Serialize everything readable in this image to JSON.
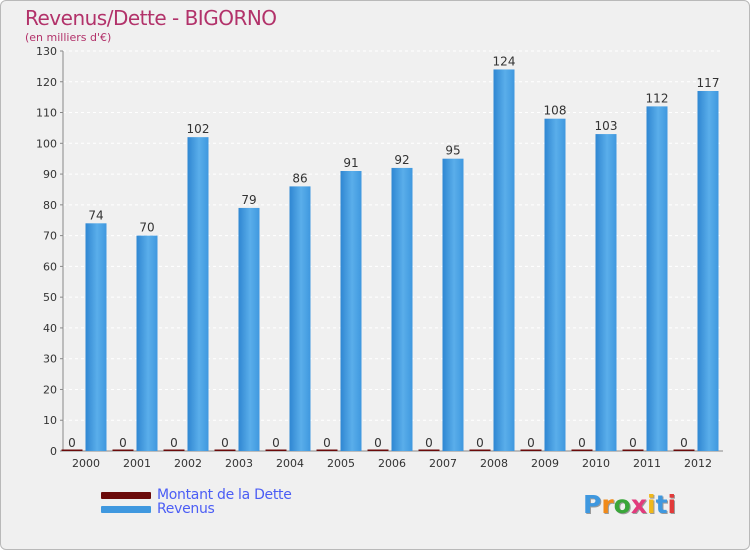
{
  "title": "Revenus/Dette - BIGORNO",
  "subtitle": "(en milliers d'€)",
  "legend": {
    "items": [
      {
        "label": "Montant de la Dette",
        "color": "#6b0a0a"
      },
      {
        "label": "Revenus",
        "color": "#3f98df"
      }
    ]
  },
  "logo": {
    "text": "Proxiti",
    "letters": [
      {
        "ch": "P",
        "color": "#3f98df"
      },
      {
        "ch": "r",
        "color": "#f08a1a"
      },
      {
        "ch": "o",
        "color": "#3aa63a"
      },
      {
        "ch": "x",
        "color": "#e23a7c"
      },
      {
        "ch": "i",
        "color": "#f0b81a"
      },
      {
        "ch": "t",
        "color": "#3f98df"
      },
      {
        "ch": "i",
        "color": "#e23a3a"
      }
    ]
  },
  "chart_data": {
    "type": "bar",
    "title": "Revenus/Dette - BIGORNO",
    "ylabel": "(en milliers d'€)",
    "xlabel": "",
    "categories": [
      "2000",
      "2001",
      "2002",
      "2003",
      "2004",
      "2005",
      "2006",
      "2007",
      "2008",
      "2009",
      "2010",
      "2011",
      "2012"
    ],
    "series": [
      {
        "name": "Montant de la Dette",
        "color": "#6b0a0a",
        "values": [
          0,
          0,
          0,
          0,
          0,
          0,
          0,
          0,
          0,
          0,
          0,
          0,
          0
        ]
      },
      {
        "name": "Revenus",
        "color": "#3f98df",
        "values": [
          74,
          70,
          102,
          79,
          86,
          91,
          92,
          95,
          124,
          108,
          103,
          112,
          117
        ]
      }
    ],
    "ylim": [
      0,
      130
    ],
    "yticks": [
      0,
      10,
      20,
      30,
      40,
      50,
      60,
      70,
      80,
      90,
      100,
      110,
      120,
      130
    ],
    "grid": true,
    "legend_position": "bottom-left"
  }
}
